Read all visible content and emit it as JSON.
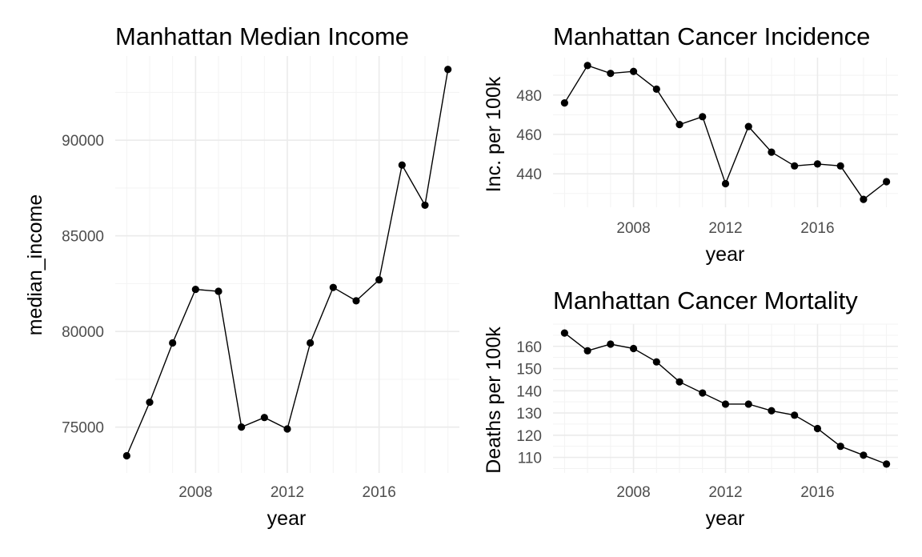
{
  "chart_data": [
    {
      "type": "line",
      "title": "Manhattan Median Income",
      "xlabel": "year",
      "ylabel": "median_income",
      "x": [
        2005,
        2006,
        2007,
        2008,
        2009,
        2010,
        2011,
        2012,
        2013,
        2014,
        2015,
        2016,
        2017,
        2018,
        2019
      ],
      "y": [
        73500,
        76300,
        79400,
        82200,
        82100,
        75000,
        75500,
        74900,
        79400,
        82300,
        81600,
        82700,
        88700,
        86600,
        93700
      ],
      "xlim": [
        2004.5,
        2019.5
      ],
      "ylim": [
        72600,
        94400
      ],
      "xticks": [
        2008,
        2012,
        2016
      ],
      "yticks": [
        75000,
        80000,
        85000,
        90000
      ],
      "grid": true
    },
    {
      "type": "line",
      "title": "Manhattan Cancer Incidence",
      "xlabel": "year",
      "ylabel": "Inc. per 100k",
      "x": [
        2005,
        2006,
        2007,
        2008,
        2009,
        2010,
        2011,
        2012,
        2013,
        2014,
        2015,
        2016,
        2017,
        2018,
        2019
      ],
      "y": [
        476,
        495,
        491,
        492,
        483,
        465,
        469,
        435,
        464,
        451,
        444,
        445,
        444,
        427,
        436
      ],
      "xlim": [
        2004.5,
        2019.5
      ],
      "ylim": [
        423,
        499
      ],
      "xticks": [
        2008,
        2012,
        2016
      ],
      "yticks": [
        440,
        460,
        480
      ],
      "grid": true
    },
    {
      "type": "line",
      "title": "Manhattan Cancer Mortality",
      "xlabel": "year",
      "ylabel": "Deaths per 100k",
      "x": [
        2005,
        2006,
        2007,
        2008,
        2009,
        2010,
        2011,
        2012,
        2013,
        2014,
        2015,
        2016,
        2017,
        2018,
        2019
      ],
      "y": [
        166,
        158,
        161,
        159,
        153,
        144,
        139,
        134,
        134,
        131,
        129,
        123,
        115,
        111,
        107
      ],
      "xlim": [
        2004.5,
        2019.5
      ],
      "ylim": [
        103,
        170
      ],
      "xticks": [
        2008,
        2012,
        2016
      ],
      "yticks": [
        110,
        120,
        130,
        140,
        150,
        160
      ],
      "grid": true
    }
  ]
}
